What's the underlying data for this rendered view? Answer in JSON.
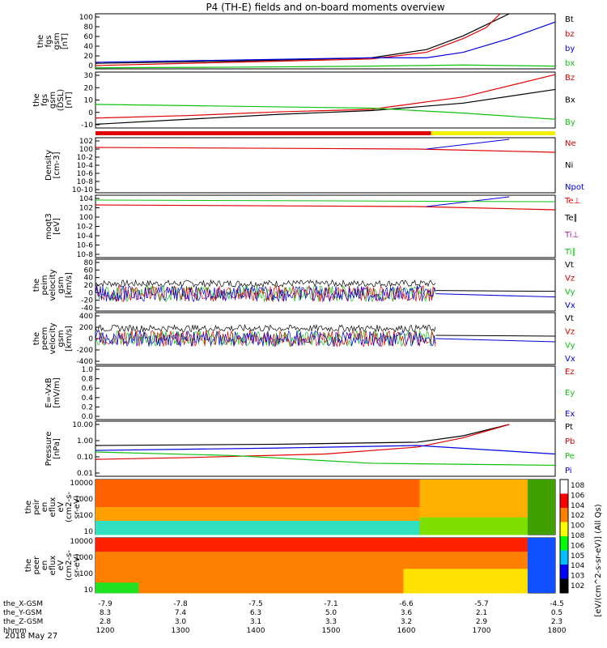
{
  "title": "P4 (TH-E) fields and on-board moments overview",
  "date": "2018 May 27",
  "colors": {
    "black": "#000000",
    "red": "#e00000",
    "green": "#10c010",
    "blue": "#0000e0",
    "yellow": "#f0f000",
    "purple": "#a020a0"
  },
  "chart_data": [
    {
      "type": "line",
      "ylabel": [
        "the",
        "fgs",
        "gsm",
        "[nT]"
      ],
      "ylim": [
        0,
        100
      ],
      "yticks": [
        "100",
        "80",
        "60",
        "40",
        "20",
        "0"
      ],
      "ytick_values": [
        100,
        80,
        60,
        40,
        20,
        0
      ],
      "series": [
        {
          "name": "Bt",
          "color": "black",
          "x": [
            0,
            0.3,
            0.6,
            0.72,
            0.8,
            0.85,
            0.9
          ],
          "y": [
            10,
            14,
            20,
            35,
            60,
            80,
            100
          ]
        },
        {
          "name": "bz",
          "color": "red",
          "x": [
            0,
            0.3,
            0.6,
            0.72,
            0.8,
            0.85,
            0.88
          ],
          "y": [
            6,
            12,
            18,
            30,
            55,
            75,
            100
          ]
        },
        {
          "name": "by",
          "color": "blue",
          "x": [
            0,
            0.3,
            0.6,
            0.72,
            0.8,
            0.9,
            1
          ],
          "y": [
            12,
            16,
            20,
            20,
            30,
            55,
            85
          ]
        },
        {
          "name": "bx",
          "color": "green",
          "x": [
            0,
            0.3,
            0.6,
            0.8,
            1
          ],
          "y": [
            2,
            3,
            5,
            7,
            5
          ]
        }
      ]
    },
    {
      "type": "line",
      "ylabel": [
        "the",
        "fgs",
        "gsm",
        "(DSL)",
        "[nT]"
      ],
      "ylim": [
        -15,
        30
      ],
      "yticks": [
        "30",
        "20",
        "10",
        "0",
        "-10"
      ],
      "ytick_values": [
        30,
        20,
        10,
        0,
        -10
      ],
      "series": [
        {
          "name": "Bz",
          "color": "red",
          "x": [
            0,
            0.2,
            0.4,
            0.6,
            0.8,
            1
          ],
          "y": [
            -7,
            -5,
            -2,
            0,
            10,
            28
          ]
        },
        {
          "name": "Bx",
          "color": "black",
          "x": [
            0,
            0.2,
            0.4,
            0.6,
            0.8,
            1
          ],
          "y": [
            -12,
            -8,
            -4,
            -1,
            5,
            16
          ]
        },
        {
          "name": "By",
          "color": "green",
          "x": [
            0,
            0.2,
            0.4,
            0.6,
            0.8,
            1
          ],
          "y": [
            4,
            3,
            2,
            1,
            -3,
            -8
          ]
        }
      ]
    },
    {
      "type": "line",
      "ylabel": [
        "Density",
        "[cm-3]"
      ],
      "yticks": [
        "10^2",
        "10^0",
        "10^-2",
        "10^-4",
        "10^-6",
        "10^-8",
        "10^-10"
      ],
      "series": [
        {
          "name": "Ne",
          "color": "red"
        },
        {
          "name": "Ni",
          "color": "black"
        },
        {
          "name": "Npot",
          "color": "blue"
        }
      ]
    },
    {
      "type": "line",
      "ylabel": [
        "moqt3",
        "[eV]"
      ],
      "yticks": [
        "10^4",
        "10^2",
        "10^0",
        "10^-2",
        "10^-4",
        "10^-6",
        "10^-8"
      ],
      "series": [
        {
          "name": "Te⊥",
          "color": "red"
        },
        {
          "name": "Te∥",
          "color": "black"
        },
        {
          "name": "Ti⊥",
          "color": "purple"
        },
        {
          "name": "Ti∥",
          "color": "green"
        }
      ]
    },
    {
      "type": "line",
      "ylabel": [
        "the",
        "peim",
        "velocity",
        "gsm",
        "[km/s]"
      ],
      "ylim": [
        -40,
        80
      ],
      "yticks": [
        "80",
        "60",
        "40",
        "20",
        "0",
        "-20",
        "-40"
      ],
      "ytick_values": [
        80,
        60,
        40,
        20,
        0,
        -20,
        -40
      ],
      "series": [
        {
          "name": "Vt",
          "color": "black"
        },
        {
          "name": "Vz",
          "color": "red"
        },
        {
          "name": "Vy",
          "color": "green"
        },
        {
          "name": "Vx",
          "color": "blue"
        }
      ]
    },
    {
      "type": "line",
      "ylabel": [
        "the",
        "peem",
        "velocity",
        "gsm",
        "[km/s]"
      ],
      "ylim": [
        -400,
        400
      ],
      "yticks": [
        "400",
        "200",
        "0",
        "-200",
        "-400"
      ],
      "ytick_values": [
        400,
        200,
        0,
        -200,
        -400
      ],
      "series": [
        {
          "name": "Vt",
          "color": "black"
        },
        {
          "name": "Vz",
          "color": "red"
        },
        {
          "name": "Vy",
          "color": "green"
        },
        {
          "name": "Vx",
          "color": "blue"
        }
      ]
    },
    {
      "type": "line",
      "ylabel": [
        "E=-VxB",
        "[mV/m]"
      ],
      "ylim": [
        0,
        1
      ],
      "yticks": [
        "1.0",
        "0.8",
        "0.6",
        "0.4",
        "0.2",
        "0.0"
      ],
      "ytick_values": [
        1,
        0.8,
        0.6,
        0.4,
        0.2,
        0
      ],
      "series": [
        {
          "name": "Ez",
          "color": "red"
        },
        {
          "name": "Ey",
          "color": "green"
        },
        {
          "name": "Ex",
          "color": "blue"
        }
      ]
    },
    {
      "type": "line",
      "ylabel": [
        "Pressure",
        "[nPa]"
      ],
      "yticks": [
        "10.00",
        "1.00",
        "0.10",
        "0.01"
      ],
      "ytick_values": [
        10,
        1,
        0.1,
        0.01
      ],
      "series": [
        {
          "name": "Pt",
          "color": "black",
          "x": [
            0,
            0.4,
            0.7,
            0.8,
            0.9
          ],
          "y": [
            0.5,
            0.6,
            0.8,
            2,
            10
          ]
        },
        {
          "name": "Pb",
          "color": "red",
          "x": [
            0,
            0.2,
            0.5,
            0.7,
            0.8,
            0.9
          ],
          "y": [
            0.07,
            0.09,
            0.15,
            0.4,
            1.5,
            10
          ]
        },
        {
          "name": "Pe",
          "color": "green",
          "x": [
            0,
            0.3,
            0.6,
            1
          ],
          "y": [
            0.2,
            0.12,
            0.04,
            0.03
          ]
        },
        {
          "name": "Pi",
          "color": "blue",
          "x": [
            0,
            0.4,
            0.7,
            1
          ],
          "y": [
            0.25,
            0.35,
            0.5,
            0.15
          ]
        }
      ]
    },
    {
      "type": "heatmap",
      "ylabel": [
        "the",
        "peir",
        "en",
        "eflux",
        "eV",
        "(cm2-s-",
        "sr-eV)"
      ],
      "yticks": [
        "10000",
        "1000",
        "100",
        "10"
      ],
      "ytick_values": [
        10000,
        1000,
        100,
        10
      ]
    },
    {
      "type": "heatmap",
      "ylabel": [
        "the",
        "peer",
        "en",
        "eflux",
        "eV",
        "(cm2-s-",
        "sr-eV)"
      ],
      "yticks": [
        "10000",
        "1000",
        "100",
        "10"
      ],
      "ytick_values": [
        10000,
        1000,
        100,
        10
      ]
    }
  ],
  "colorbar": {
    "label": "[eV/(cm^2-s-sr-eV)] (All Qs)",
    "ticks": [
      "10^8",
      "10^6",
      "10^4",
      "10^2",
      "10^0",
      "10^8",
      "10^6",
      "10^5",
      "10^4",
      "10^3",
      "10^2"
    ]
  },
  "xaxis": {
    "rows": [
      {
        "name": "the_X-GSM",
        "values": [
          "-7.9",
          "-7.8",
          "-7.5",
          "-7.1",
          "-6.6",
          "-5.7",
          "-4.5"
        ]
      },
      {
        "name": "the_Y-GSM",
        "values": [
          "8.3",
          "7.4",
          "6.3",
          "5.0",
          "3.6",
          "2.1",
          "0.5"
        ]
      },
      {
        "name": "the_Z-GSM",
        "values": [
          "2.8",
          "3.0",
          "3.1",
          "3.3",
          "3.2",
          "2.9",
          "2.3"
        ]
      },
      {
        "name": "hhmm",
        "values": [
          "1200",
          "1300",
          "1400",
          "1500",
          "1600",
          "1700",
          "1800"
        ]
      }
    ]
  }
}
